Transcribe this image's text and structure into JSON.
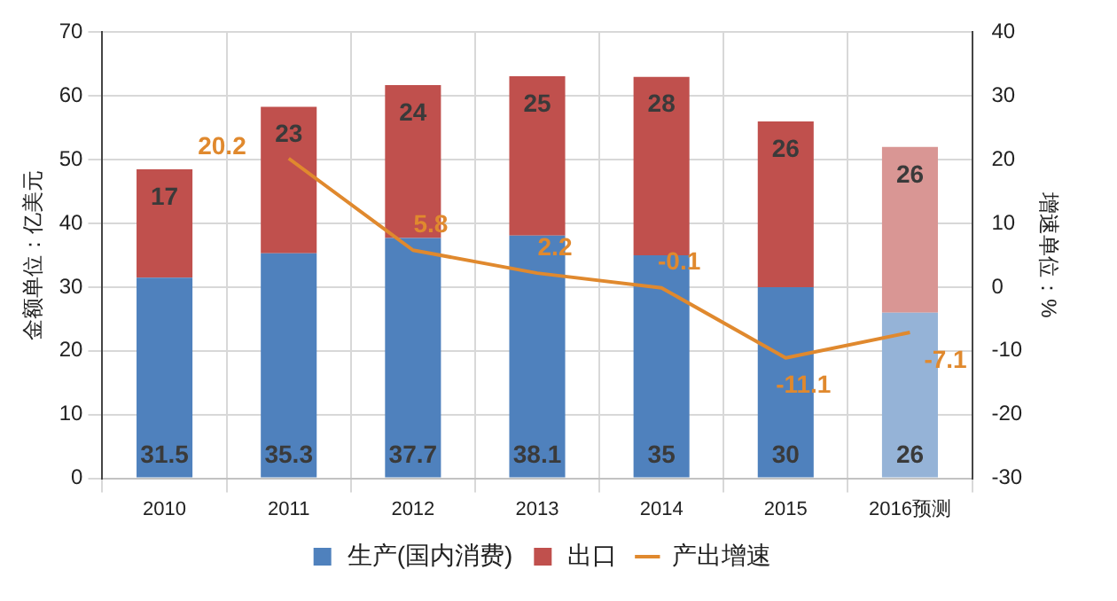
{
  "chart_data": {
    "type": "bar",
    "stacked": true,
    "ylabel": "金额单位：亿美元",
    "y2label": "增速单位：%",
    "categories": [
      "2010",
      "2011",
      "2012",
      "2013",
      "2014",
      "2015",
      "2016预测"
    ],
    "series": [
      {
        "name": "生产(国内消费)",
        "color": "#4f81bd",
        "colors": [
          "#4f81bd",
          "#4f81bd",
          "#4f81bd",
          "#4f81bd",
          "#4f81bd",
          "#4f81bd",
          "#95b3d7"
        ],
        "values": [
          31.5,
          35.3,
          37.7,
          38.1,
          35,
          30,
          26
        ]
      },
      {
        "name": "出口",
        "color": "#c0504d",
        "colors": [
          "#c0504d",
          "#c0504d",
          "#c0504d",
          "#c0504d",
          "#c0504d",
          "#c0504d",
          "#d99694"
        ],
        "values": [
          17,
          23,
          24,
          25,
          28,
          26,
          26
        ]
      },
      {
        "name": "产出增速",
        "type": "line",
        "axis": "y2",
        "color": "#e0892e",
        "values": [
          null,
          20.2,
          5.8,
          2.2,
          -0.1,
          -11.1,
          -7.1
        ]
      }
    ],
    "ylim": [
      0,
      70
    ],
    "yticks": [
      0,
      10,
      20,
      30,
      40,
      50,
      60,
      70
    ],
    "y2lim": [
      -30,
      40
    ],
    "y2ticks": [
      -30,
      -20,
      -10,
      0,
      10,
      20,
      30,
      40
    ],
    "grid": true,
    "legend": "bottom",
    "marker": "none",
    "line_style": "solid",
    "data_labels": true
  }
}
